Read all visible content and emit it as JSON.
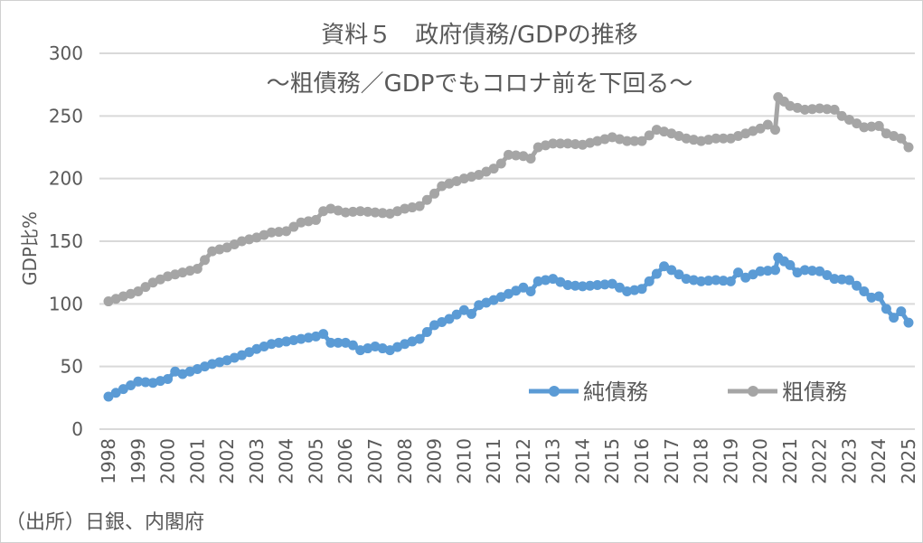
{
  "chart_data": {
    "type": "line",
    "title": "資料５　政府債務/GDPの推移",
    "subtitle": "～粗債務／GDPでもコロナ前を下回る～",
    "ylabel": "GDP比%",
    "xlabel": "",
    "source": "（出所）日銀、内閣府",
    "ylim": [
      0,
      300
    ],
    "yticks": [
      0,
      50,
      100,
      150,
      200,
      250,
      300
    ],
    "xlim": [
      1998,
      2025
    ],
    "xticks": [
      "1998",
      "1999",
      "2000",
      "2001",
      "2002",
      "2003",
      "2004",
      "2005",
      "2006",
      "2007",
      "2008",
      "2009",
      "2010",
      "2011",
      "2012",
      "2013",
      "2014",
      "2015",
      "2016",
      "2017",
      "2018",
      "2019",
      "2020",
      "2021",
      "2022",
      "2023",
      "2024",
      "2025"
    ],
    "grid": true,
    "legend": "bottom-right",
    "series": [
      {
        "name": "純債務",
        "color": "#5b9bd5",
        "x": [
          1998,
          1998.5,
          1999,
          1999.5,
          2000,
          2000.25,
          2000.5,
          2001,
          2001.5,
          2002,
          2002.5,
          2003,
          2003.5,
          2004,
          2004.5,
          2005,
          2005.25,
          2005.5,
          2006,
          2006.25,
          2006.5,
          2007,
          2007.5,
          2008,
          2008.5,
          2009,
          2009.5,
          2010,
          2010.25,
          2010.5,
          2011,
          2011.5,
          2012,
          2012.25,
          2012.5,
          2013,
          2013.5,
          2014,
          2014.5,
          2015,
          2015.5,
          2016,
          2016.5,
          2016.75,
          2017,
          2017.5,
          2018,
          2018.5,
          2019,
          2019.25,
          2019.5,
          2020,
          2020.5,
          2020.6,
          2021,
          2021.25,
          2021.5,
          2022,
          2022.5,
          2023,
          2023.5,
          2023.75,
          2024,
          2024.25,
          2024.5,
          2024.75,
          2025
        ],
        "values": [
          26,
          32,
          38,
          37,
          40,
          46,
          44,
          48,
          52,
          55,
          59,
          64,
          68,
          70,
          72,
          74,
          76,
          69,
          69,
          67,
          63,
          66,
          63,
          68,
          72,
          83,
          88,
          95,
          92,
          99,
          103,
          108,
          113,
          110,
          118,
          120,
          115,
          114,
          115,
          116,
          110,
          112,
          124,
          130,
          127,
          120,
          118,
          119,
          118,
          125,
          121,
          126,
          127,
          137,
          131,
          125,
          127,
          126,
          120,
          119,
          110,
          105,
          106,
          96,
          89,
          94,
          85
        ]
      },
      {
        "name": "粗債務",
        "color": "#a5a5a5",
        "x": [
          1998,
          1998.5,
          1999,
          1999.5,
          2000,
          2000.5,
          2001,
          2001.25,
          2001.5,
          2002,
          2002.5,
          2003,
          2003.5,
          2004,
          2004.5,
          2005,
          2005.25,
          2005.5,
          2006,
          2006.5,
          2007,
          2007.5,
          2008,
          2008.5,
          2009,
          2009.25,
          2009.5,
          2010,
          2010.5,
          2011,
          2011.25,
          2011.5,
          2012,
          2012.25,
          2012.5,
          2013,
          2013.5,
          2014,
          2014.5,
          2015,
          2015.5,
          2016,
          2016.5,
          2017,
          2017.5,
          2018,
          2018.5,
          2019,
          2019.5,
          2020,
          2020.25,
          2020.5,
          2020.6,
          2021,
          2021.5,
          2022,
          2022.5,
          2022.75,
          2023,
          2023.5,
          2024,
          2024.25,
          2024.5,
          2024.75,
          2025
        ],
        "values": [
          102,
          106,
          110,
          117,
          122,
          125,
          128,
          135,
          142,
          145,
          150,
          153,
          157,
          158,
          165,
          167,
          174,
          176,
          173,
          174,
          173,
          172,
          176,
          178,
          188,
          194,
          196,
          200,
          203,
          208,
          212,
          219,
          218,
          216,
          225,
          228,
          228,
          227,
          230,
          233,
          230,
          230,
          239,
          236,
          232,
          230,
          232,
          232,
          236,
          240,
          243,
          239,
          265,
          258,
          255,
          256,
          255,
          250,
          247,
          241,
          242,
          236,
          234,
          232,
          225
        ]
      }
    ]
  }
}
